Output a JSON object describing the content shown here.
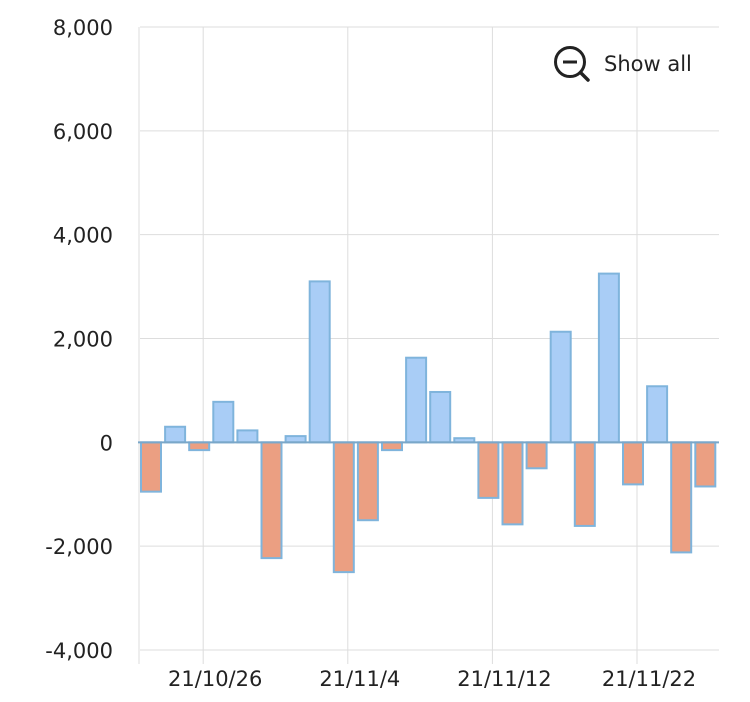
{
  "chart_data": {
    "type": "bar",
    "title": "",
    "xlabel": "",
    "ylabel": "",
    "ylim": [
      -4000,
      8000
    ],
    "y_ticks": [
      "8,000",
      "6,000",
      "4,000",
      "2,000",
      "0",
      "-2,000",
      "-4,000"
    ],
    "y_tick_values": [
      8000,
      6000,
      4000,
      2000,
      0,
      -2000,
      -4000
    ],
    "x_tick_labels": [
      "21/10/26",
      "21/11/4",
      "21/11/12",
      "21/11/22"
    ],
    "x_tick_bar_index": [
      2,
      8,
      14,
      20
    ],
    "grid": true,
    "legend": "none",
    "positive_color": "#a9cdf6",
    "negative_color": "#eb9f82",
    "bar_border_color": "#7fb4dc",
    "values": [
      -950,
      300,
      -150,
      780,
      230,
      -2230,
      120,
      3100,
      -2500,
      -1500,
      -150,
      1630,
      970,
      80,
      -1070,
      -1580,
      -500,
      2130,
      -1610,
      3250,
      -810,
      1080,
      -2120,
      -850
    ]
  },
  "controls": {
    "show_all_label": "Show all",
    "show_all_icon": "zoom-out-icon"
  }
}
